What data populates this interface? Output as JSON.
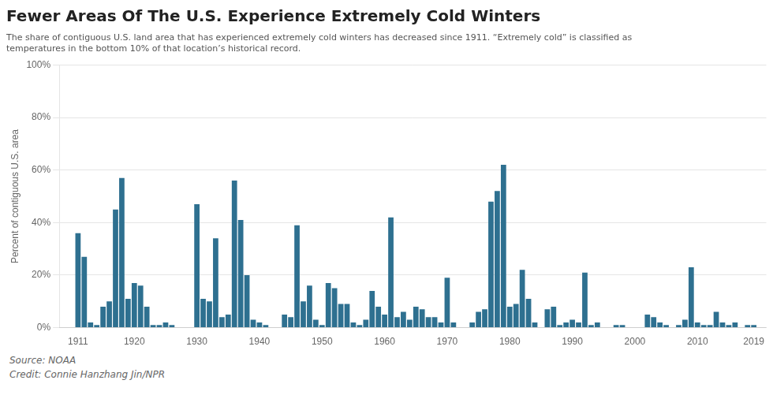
{
  "chart_data": {
    "type": "bar",
    "title": "Fewer Areas Of The U.S. Experience Extremely Cold Winters",
    "subtitle": [
      "The share of contiguous U.S. land area that has experienced extremely cold winters has decreased since 1911. “Extremely cold” is classified as",
      "temperatures in the bottom 10% of that location’s historical record."
    ],
    "source": "Source: NOAA",
    "credit": "Credit: Connie Hanzhang Jin/NPR",
    "ylabel": "Percent of contiguous U.S. area",
    "color": "#2e7090",
    "x": [
      1911,
      1912,
      1913,
      1914,
      1915,
      1916,
      1917,
      1918,
      1919,
      1920,
      1921,
      1922,
      1923,
      1924,
      1925,
      1926,
      1927,
      1928,
      1929,
      1930,
      1931,
      1932,
      1933,
      1934,
      1935,
      1936,
      1937,
      1938,
      1939,
      1940,
      1941,
      1942,
      1943,
      1944,
      1945,
      1946,
      1947,
      1948,
      1949,
      1950,
      1951,
      1952,
      1953,
      1954,
      1955,
      1956,
      1957,
      1958,
      1959,
      1960,
      1961,
      1962,
      1963,
      1964,
      1965,
      1966,
      1967,
      1968,
      1969,
      1970,
      1971,
      1972,
      1973,
      1974,
      1975,
      1976,
      1977,
      1978,
      1979,
      1980,
      1981,
      1982,
      1983,
      1984,
      1985,
      1986,
      1987,
      1988,
      1989,
      1990,
      1991,
      1992,
      1993,
      1994,
      1995,
      1996,
      1997,
      1998,
      1999,
      2000,
      2001,
      2002,
      2003,
      2004,
      2005,
      2006,
      2007,
      2008,
      2009,
      2010,
      2011,
      2012,
      2013,
      2014,
      2015,
      2016,
      2017,
      2018,
      2019
    ],
    "values": [
      36,
      27,
      2,
      1,
      8,
      10,
      45,
      57,
      11,
      17,
      16,
      8,
      1,
      1,
      2,
      1,
      0,
      0,
      0,
      47,
      11,
      10,
      34,
      4,
      5,
      56,
      41,
      20,
      3,
      2,
      1,
      0,
      0,
      5,
      4,
      39,
      10,
      16,
      3,
      1,
      17,
      15,
      9,
      9,
      2,
      1,
      3,
      14,
      8,
      5,
      42,
      4,
      6,
      3,
      8,
      7,
      4,
      4,
      2,
      19,
      2,
      0,
      0,
      2,
      6,
      7,
      48,
      52,
      62,
      8,
      9,
      22,
      11,
      2,
      0,
      7,
      8,
      1,
      2,
      3,
      2,
      21,
      1,
      2,
      0,
      0,
      1,
      1,
      0,
      0,
      0,
      5,
      4,
      2,
      1,
      0,
      1,
      3,
      23,
      2,
      1,
      1,
      6,
      2,
      1,
      2,
      0,
      1,
      1
    ],
    "xlim": [
      1908,
      2021
    ],
    "xticks": [
      1911,
      1920,
      1930,
      1940,
      1950,
      1960,
      1970,
      1980,
      1990,
      2000,
      2010,
      2019
    ],
    "ylim": [
      0,
      100
    ],
    "yticks": [
      {
        "value": 0,
        "label": "0%"
      },
      {
        "value": 20,
        "label": "20%"
      },
      {
        "value": 40,
        "label": "40%"
      },
      {
        "value": 60,
        "label": "60%"
      },
      {
        "value": 80,
        "label": "80%"
      },
      {
        "value": 100,
        "label": "100%"
      }
    ],
    "grid": true
  }
}
